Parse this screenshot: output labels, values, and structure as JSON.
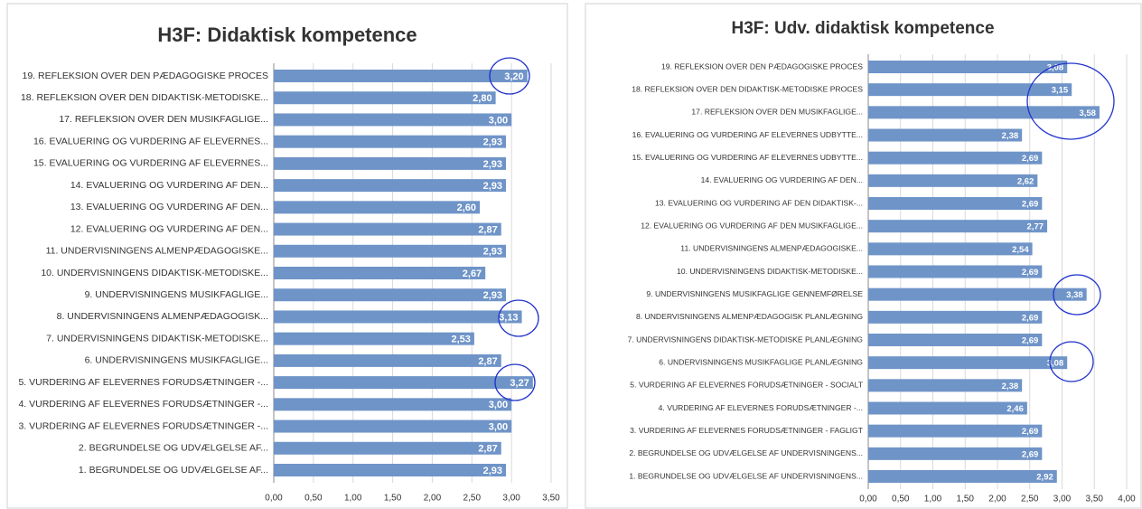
{
  "chart_data": [
    {
      "type": "bar",
      "title": "H3F: Didaktisk kompetence",
      "color": "#6f94c8",
      "grid": true,
      "categories": [
        "19. REFLEKSION OVER DEN PÆDAGOGISKE PROCES",
        "18. REFLEKSION OVER DEN DIDAKTISK-METODISKE...",
        "17. REFLEKSION OVER DEN MUSIKFAGLIGE...",
        "16. EVALUERING OG VURDERING AF ELEVERNES...",
        "15. EVALUERING OG VURDERING AF ELEVERNES...",
        "14. EVALUERING OG VURDERING AF DEN...",
        "13. EVALUERING OG VURDERING AF DEN...",
        "12. EVALUERING OG VURDERING AF DEN...",
        "11. UNDERVISNINGENS ALMENPÆDAGOGISKE...",
        "10. UNDERVISNINGENS DIDAKTISK-METODISKE...",
        "9. UNDERVISNINGENS MUSIKFAGLIGE...",
        "8. UNDERVISNINGENS ALMENPÆDAGOGISK...",
        "7. UNDERVISNINGENS DIDAKTISK-METODISKE...",
        "6. UNDERVISNINGENS MUSIKFAGLIGE...",
        "5. VURDERING AF ELEVERNES FORUDSÆTNINGER -...",
        "4. VURDERING AF ELEVERNES FORUDSÆTNINGER -...",
        "3. VURDERING AF ELEVERNES FORUDSÆTNINGER -...",
        "2. BEGRUNDELSE OG UDVÆLGELSE AF...",
        "1. BEGRUNDELSE OG UDVÆLGELSE AF..."
      ],
      "values": [
        3.2,
        2.8,
        3.0,
        2.93,
        2.93,
        2.93,
        2.6,
        2.87,
        2.93,
        2.67,
        2.93,
        3.13,
        2.53,
        2.87,
        3.27,
        3.0,
        3.0,
        2.87,
        2.93
      ],
      "value_labels": [
        "3,20",
        "2,80",
        "3,00",
        "2,93",
        "2,93",
        "2,93",
        "2,60",
        "2,87",
        "2,93",
        "2,67",
        "2,93",
        "3,13",
        "2,53",
        "2,87",
        "3,27",
        "3,00",
        "3,00",
        "2,87",
        "2,93"
      ],
      "xlim": [
        0,
        3.5
      ],
      "xticks": [
        {
          "value": 0,
          "label": "0,00"
        },
        {
          "value": 0.5,
          "label": "0,50"
        },
        {
          "value": 1,
          "label": "1,00"
        },
        {
          "value": 1.5,
          "label": "1,50"
        },
        {
          "value": 2,
          "label": "2,00"
        },
        {
          "value": 2.5,
          "label": "2,50"
        },
        {
          "value": 3,
          "label": "3,00"
        },
        {
          "value": 3.5,
          "label": "3,50"
        }
      ]
    },
    {
      "type": "bar",
      "title": "H3F: Udv. didaktisk kompetence",
      "color": "#6f94c8",
      "grid": true,
      "categories": [
        "19. REFLEKSION OVER DEN PÆDAGOGISKE PROCES",
        "18. REFLEKSION OVER DEN DIDAKTISK-METODISKE PROCES",
        "17. REFLEKSION OVER DEN MUSIKFAGLIGE...",
        "16. EVALUERING OG VURDERING AF ELEVERNES UDBYTTE...",
        "15. EVALUERING OG VURDERING AF ELEVERNES UDBYTTE...",
        "14. EVALUERING OG VURDERING AF DEN...",
        "13. EVALUERING OG VURDERING AF DEN DIDAKTISK-...",
        "12. EVALUERING OG VURDERING AF DEN MUSIKFAGLIGE...",
        "11. UNDERVISNINGENS ALMENPÆDAGOGISKE...",
        "10. UNDERVISNINGENS DIDAKTISK-METODISKE...",
        "9. UNDERVISNINGENS MUSIKFAGLIGE GENNEMFØRELSE",
        "8. UNDERVISNINGENS ALMENPÆDAGOGISK PLANLÆGNING",
        "7. UNDERVISNINGENS DIDAKTISK-METODISKE PLANLÆGNING",
        "6. UNDERVISNINGENS MUSIKFAGLIGE PLANLÆGNING",
        "5. VURDERING AF ELEVERNES FORUDSÆTNINGER - SOCIALT",
        "4. VURDERING AF ELEVERNES FORUDSÆTNINGER -...",
        "3. VURDERING AF ELEVERNES FORUDSÆTNINGER - FAGLIGT",
        "2. BEGRUNDELSE OG UDVÆLGELSE AF UNDERVISNINGENS...",
        "1. BEGRUNDELSE OG UDVÆLGELSE AF UNDERVISNINGENS..."
      ],
      "values": [
        3.08,
        3.15,
        3.58,
        2.38,
        2.69,
        2.62,
        2.69,
        2.77,
        2.54,
        2.69,
        3.38,
        2.69,
        2.69,
        3.08,
        2.38,
        2.46,
        2.69,
        2.69,
        2.92
      ],
      "value_labels": [
        "3,08",
        "3,15",
        "3,58",
        "2,38",
        "2,69",
        "2,62",
        "2,69",
        "2,77",
        "2,54",
        "2,69",
        "3,38",
        "2,69",
        "2,69",
        "3,08",
        "2,38",
        "2,46",
        "2,69",
        "2,69",
        "2,92"
      ],
      "xlim": [
        0,
        4
      ],
      "xticks": [
        {
          "value": 0,
          "label": "0,00"
        },
        {
          "value": 0.5,
          "label": "0,50"
        },
        {
          "value": 1,
          "label": "1,00"
        },
        {
          "value": 1.5,
          "label": "1,50"
        },
        {
          "value": 2,
          "label": "2,00"
        },
        {
          "value": 2.5,
          "label": "2,50"
        },
        {
          "value": 3,
          "label": "3,00"
        },
        {
          "value": 3.5,
          "label": "3,50"
        },
        {
          "value": 4,
          "label": "4,00"
        }
      ]
    }
  ]
}
